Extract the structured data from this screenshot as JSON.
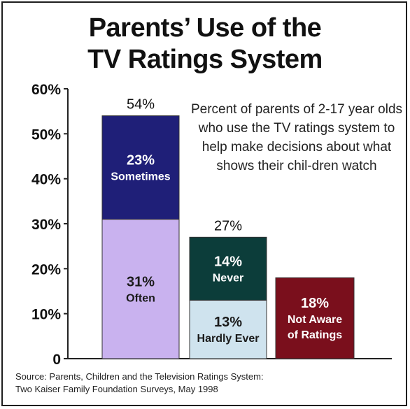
{
  "title_line1": "Parents’ Use of the",
  "title_line2": "TV Ratings System",
  "annotation": "Percent of parents of 2-17 year olds who use the TV ratings system to help make decisions about what shows their chil-dren watch",
  "source_line1": "Source: Parents, Children and the Television Ratings System:",
  "source_line2": "Two Kaiser Family Foundation Surveys, May 1998",
  "chart_data": {
    "type": "bar",
    "title": "Parents’ Use of the TV Ratings System",
    "ylim": [
      0,
      60
    ],
    "y_ticks": [
      "0",
      "10%",
      "20%",
      "30%",
      "40%",
      "50%",
      "60%"
    ],
    "y_tick_values": [
      0,
      10,
      20,
      30,
      40,
      50,
      60
    ],
    "grid": false,
    "bars": [
      {
        "total": 54,
        "total_label": "54%",
        "segments": [
          {
            "name": "Often",
            "value": 31,
            "label_pct": "31%",
            "label_name": "Often",
            "color": "#c9b2ef",
            "text_color": "#1a1a1a"
          },
          {
            "name": "Sometimes",
            "value": 23,
            "label_pct": "23%",
            "label_name": "Sometimes",
            "color": "#1f1f78",
            "text_color": "#ffffff"
          }
        ]
      },
      {
        "total": 27,
        "total_label": "27%",
        "segments": [
          {
            "name": "Hardly Ever",
            "value": 13,
            "label_pct": "13%",
            "label_name": "Hardly Ever",
            "color": "#cfe3ee",
            "text_color": "#1a1a1a"
          },
          {
            "name": "Never",
            "value": 14,
            "label_pct": "14%",
            "label_name": "Never",
            "color": "#0c3d3a",
            "text_color": "#ffffff"
          }
        ]
      },
      {
        "total": 18,
        "total_label": "",
        "segments": [
          {
            "name": "Not Aware of Ratings",
            "value": 18,
            "label_pct": "18%",
            "label_name": "Not Aware of Ratings",
            "color": "#7a0f1c",
            "text_color": "#ffffff"
          }
        ]
      }
    ]
  }
}
